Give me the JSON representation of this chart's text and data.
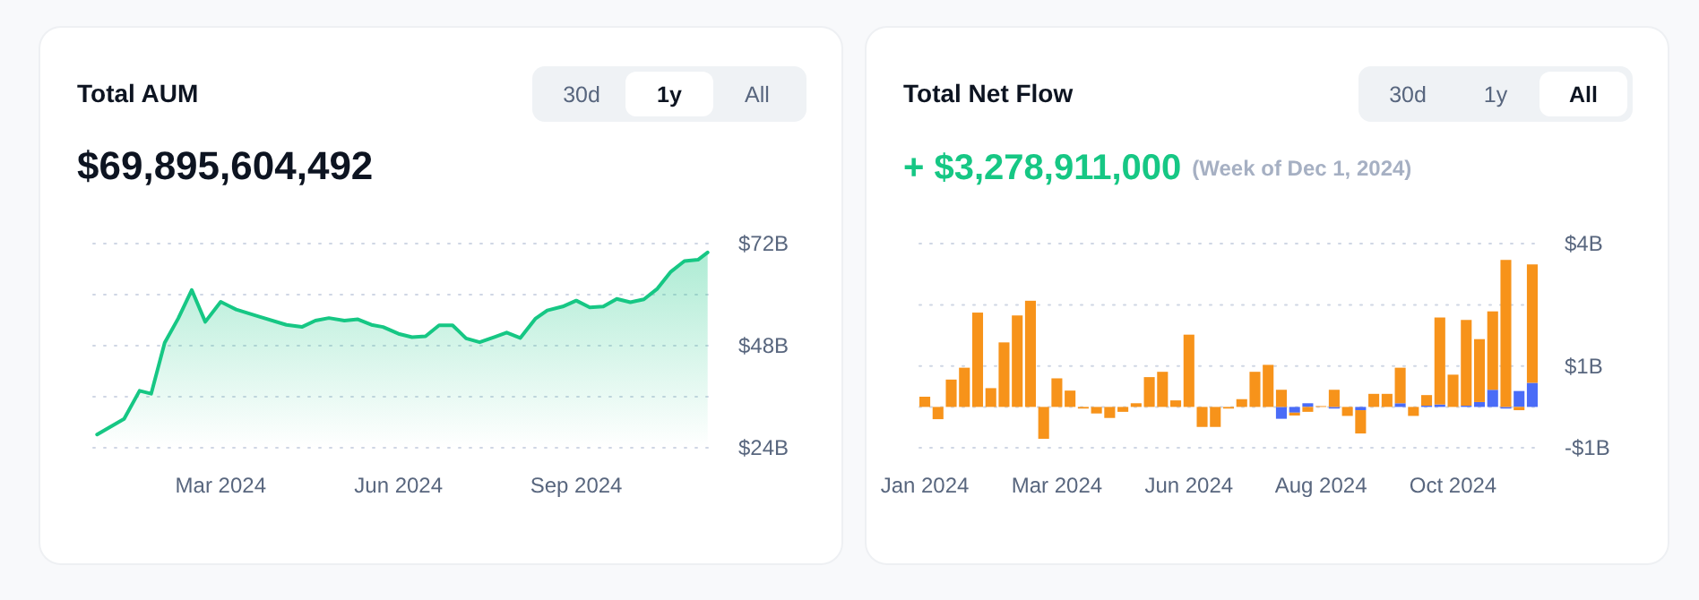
{
  "chart_data": [
    {
      "type": "area",
      "title": "Total AUM",
      "subtitle": "$69,895,604,492",
      "annotations": [
        "30d",
        "1y",
        "All"
      ],
      "grid": "y",
      "x": [
        "2023-12-28",
        "2024-01-11",
        "2024-01-19",
        "2024-01-25",
        "2024-02-01",
        "2024-02-08",
        "2024-02-15",
        "2024-02-22",
        "2024-03-01",
        "2024-03-09",
        "2024-03-21",
        "2024-04-04",
        "2024-04-12",
        "2024-04-19",
        "2024-04-26",
        "2024-05-04",
        "2024-05-11",
        "2024-05-18",
        "2024-05-24",
        "2024-06-01",
        "2024-06-08",
        "2024-06-15",
        "2024-06-22",
        "2024-06-29",
        "2024-07-06",
        "2024-07-13",
        "2024-07-21",
        "2024-07-27",
        "2024-08-03",
        "2024-08-11",
        "2024-08-17",
        "2024-08-25",
        "2024-09-01",
        "2024-09-08",
        "2024-09-15",
        "2024-09-22",
        "2024-09-29",
        "2024-10-06",
        "2024-10-13",
        "2024-10-20",
        "2024-10-27",
        "2024-11-03",
        "2024-11-08"
      ],
      "series": [
        {
          "color": "#16c784",
          "values": [
            27.1,
            30.8,
            37.4,
            36.7,
            48.7,
            54.4,
            61.1,
            53.6,
            58.3,
            56.5,
            54.8,
            52.9,
            52.4,
            53.9,
            54.5,
            53.9,
            54.2,
            52.9,
            52.4,
            50.8,
            50.0,
            50.2,
            52.8,
            52.8,
            49.7,
            48.8,
            50.1,
            51.1,
            49.8,
            54.4,
            56.3,
            57.2,
            58.6,
            57.0,
            57.2,
            59.0,
            58.2,
            58.9,
            61.4,
            65.4,
            67.9,
            68.2,
            69.9
          ]
        }
      ],
      "xlim": [
        "2023-12-26",
        "2024-11-10"
      ],
      "xticks": [
        {
          "value": "2024-03-01",
          "label": "Mar 2024"
        },
        {
          "value": "2024-06-01",
          "label": "Jun 2024"
        },
        {
          "value": "2024-09-01",
          "label": "Sep 2024"
        }
      ],
      "ylim": [
        24,
        72
      ],
      "yticks": [
        {
          "value": 24,
          "label": "$24B"
        },
        {
          "value": 36,
          "label": null
        },
        {
          "value": 48,
          "label": "$48B"
        },
        {
          "value": 60,
          "label": null
        },
        {
          "value": 72,
          "label": "$72B"
        }
      ]
    },
    {
      "type": "bar",
      "stacked": true,
      "title": "Total Net Flow",
      "subtitle": "+ $3,278,911,000",
      "annotations": [
        "(Week of Dec 1, 2024)",
        "30d",
        "1y",
        "All"
      ],
      "grid": "y",
      "categories": [
        "Jan 2024",
        null,
        null,
        null,
        null,
        null,
        null,
        null,
        null,
        null,
        "Mar 2024",
        null,
        null,
        null,
        null,
        null,
        null,
        null,
        null,
        null,
        "Jun 2024",
        null,
        null,
        null,
        null,
        null,
        null,
        null,
        null,
        null,
        "Aug 2024",
        null,
        null,
        null,
        null,
        null,
        null,
        null,
        null,
        null,
        "Oct 2024",
        null,
        null,
        null,
        null,
        null,
        null
      ],
      "series": [
        {
          "color": "#4a6cf7",
          "values": [
            null,
            null,
            null,
            null,
            null,
            null,
            null,
            null,
            null,
            null,
            null,
            null,
            null,
            null,
            null,
            null,
            null,
            null,
            null,
            null,
            null,
            null,
            null,
            null,
            null,
            null,
            null,
            -0.29,
            -0.14,
            0.09,
            null,
            -0.04,
            null,
            -0.08,
            null,
            null,
            0.09,
            null,
            0.03,
            0.06,
            null,
            0.03,
            0.12,
            0.42,
            -0.04,
            0.39,
            0.59
          ]
        },
        {
          "color": "#f7931a",
          "values": [
            0.25,
            -0.3,
            0.67,
            0.96,
            2.31,
            0.46,
            1.58,
            2.24,
            2.6,
            -0.78,
            0.7,
            0.4,
            -0.04,
            -0.16,
            -0.27,
            -0.12,
            0.09,
            0.73,
            0.86,
            0.16,
            1.77,
            -0.49,
            -0.49,
            -0.04,
            0.19,
            0.86,
            1.03,
            0.42,
            -0.07,
            -0.12,
            0.02,
            0.42,
            -0.22,
            -0.57,
            0.32,
            0.32,
            0.87,
            -0.22,
            0.26,
            2.13,
            0.79,
            2.1,
            1.54,
            1.92,
            3.6,
            -0.08,
            2.9
          ]
        }
      ],
      "ylim": [
        -1,
        4
      ],
      "yticks": [
        {
          "value": -1,
          "label": "-$1B"
        },
        {
          "value": 0,
          "label": null
        },
        {
          "value": 1,
          "label": "$1B"
        },
        {
          "value": 2.5,
          "label": null
        },
        {
          "value": 4,
          "label": "$4B"
        }
      ]
    }
  ]
}
